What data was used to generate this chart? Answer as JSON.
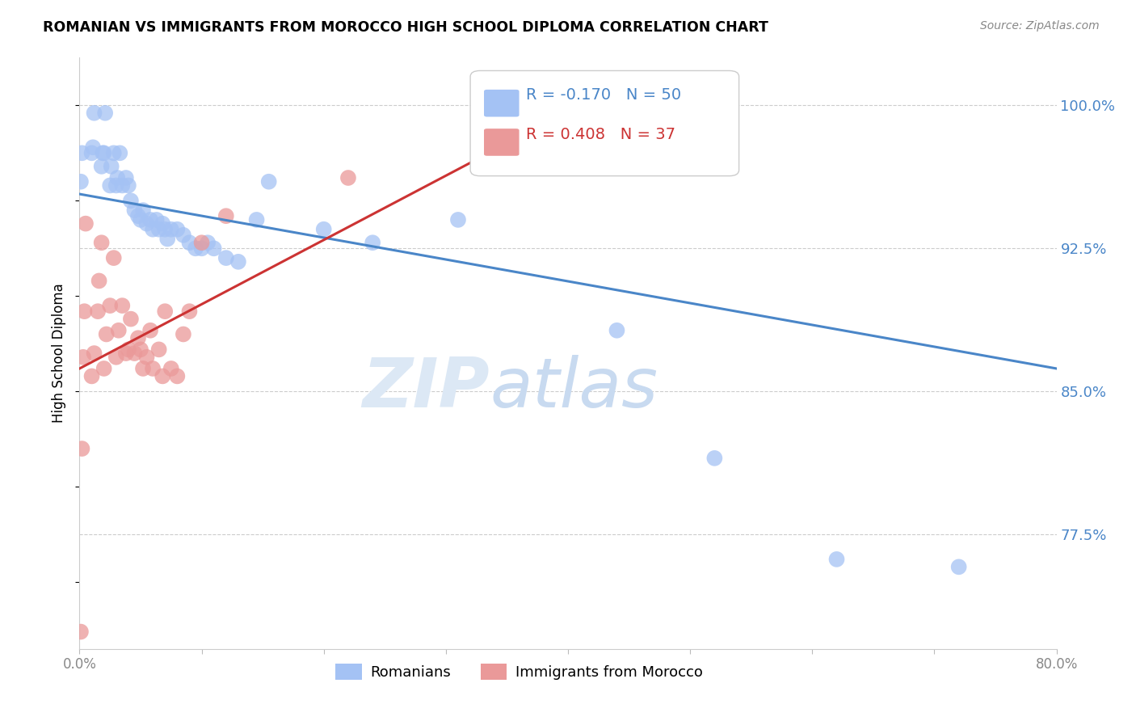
{
  "title": "ROMANIAN VS IMMIGRANTS FROM MOROCCO HIGH SCHOOL DIPLOMA CORRELATION CHART",
  "source": "Source: ZipAtlas.com",
  "ylabel": "High School Diploma",
  "yticks": [
    0.775,
    0.85,
    0.925,
    1.0
  ],
  "ytick_labels": [
    "77.5%",
    "85.0%",
    "92.5%",
    "100.0%"
  ],
  "xmin": 0.0,
  "xmax": 0.8,
  "ymin": 0.715,
  "ymax": 1.025,
  "legend_blue_r": "-0.170",
  "legend_blue_n": "50",
  "legend_pink_r": "0.408",
  "legend_pink_n": "37",
  "legend_label_blue": "Romanians",
  "legend_label_pink": "Immigrants from Morocco",
  "blue_color": "#a4c2f4",
  "pink_color": "#ea9999",
  "blue_line_color": "#4a86c8",
  "pink_line_color": "#cc3333",
  "blue_dots_x": [
    0.001,
    0.002,
    0.01,
    0.011,
    0.012,
    0.018,
    0.019,
    0.02,
    0.021,
    0.025,
    0.026,
    0.028,
    0.03,
    0.031,
    0.033,
    0.035,
    0.038,
    0.04,
    0.042,
    0.045,
    0.048,
    0.05,
    0.052,
    0.055,
    0.058,
    0.06,
    0.063,
    0.065,
    0.068,
    0.07,
    0.072,
    0.075,
    0.08,
    0.085,
    0.09,
    0.095,
    0.1,
    0.105,
    0.11,
    0.12,
    0.13,
    0.145,
    0.155,
    0.2,
    0.24,
    0.31,
    0.44,
    0.52,
    0.62,
    0.72
  ],
  "blue_dots_y": [
    0.96,
    0.975,
    0.975,
    0.978,
    0.996,
    0.968,
    0.975,
    0.975,
    0.996,
    0.958,
    0.968,
    0.975,
    0.958,
    0.962,
    0.975,
    0.958,
    0.962,
    0.958,
    0.95,
    0.945,
    0.942,
    0.94,
    0.945,
    0.938,
    0.94,
    0.935,
    0.94,
    0.935,
    0.938,
    0.935,
    0.93,
    0.935,
    0.935,
    0.932,
    0.928,
    0.925,
    0.925,
    0.928,
    0.925,
    0.92,
    0.918,
    0.94,
    0.96,
    0.935,
    0.928,
    0.94,
    0.882,
    0.815,
    0.762,
    0.758
  ],
  "pink_dots_x": [
    0.001,
    0.002,
    0.003,
    0.004,
    0.005,
    0.01,
    0.012,
    0.015,
    0.016,
    0.018,
    0.02,
    0.022,
    0.025,
    0.028,
    0.03,
    0.032,
    0.035,
    0.038,
    0.04,
    0.042,
    0.045,
    0.048,
    0.05,
    0.052,
    0.055,
    0.058,
    0.06,
    0.065,
    0.068,
    0.07,
    0.075,
    0.08,
    0.085,
    0.09,
    0.1,
    0.12,
    0.22
  ],
  "pink_dots_y": [
    0.724,
    0.82,
    0.868,
    0.892,
    0.938,
    0.858,
    0.87,
    0.892,
    0.908,
    0.928,
    0.862,
    0.88,
    0.895,
    0.92,
    0.868,
    0.882,
    0.895,
    0.87,
    0.872,
    0.888,
    0.87,
    0.878,
    0.872,
    0.862,
    0.868,
    0.882,
    0.862,
    0.872,
    0.858,
    0.892,
    0.862,
    0.858,
    0.88,
    0.892,
    0.928,
    0.942,
    0.962
  ],
  "blue_trendline_x": [
    0.0,
    0.8
  ],
  "blue_trendline_y": [
    0.9535,
    0.862
  ],
  "pink_trendline_x": [
    0.0,
    0.35
  ],
  "pink_trendline_y": [
    0.862,
    0.98
  ]
}
